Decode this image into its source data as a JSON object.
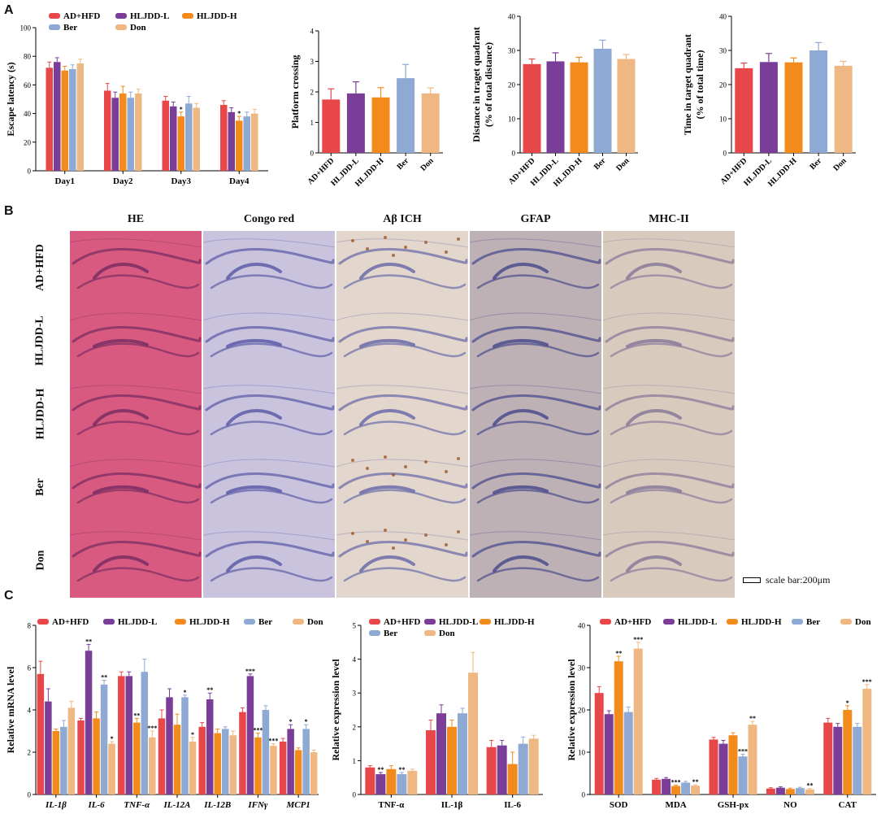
{
  "panels": {
    "a": "A",
    "b": "B",
    "c": "C"
  },
  "colors": {
    "red": "#e8474a",
    "purple": "#7a3d98",
    "orange": "#f38a1c",
    "blue": "#8ea9d3",
    "peach": "#efb882"
  },
  "chart_data": [
    {
      "id": "escape",
      "type": "bar",
      "ylabel": "Escape latency (s)",
      "ylim": [
        0,
        100
      ],
      "yticks": [
        "0",
        "20",
        "40",
        "60",
        "80",
        "100"
      ],
      "categories": [
        "Day1",
        "Day2",
        "Day3",
        "Day4"
      ],
      "italic_categories": false,
      "series": [
        {
          "name": "AD+HFD",
          "color": "#e8474a",
          "values": [
            72,
            56,
            49,
            46
          ],
          "errors": [
            4,
            5,
            3,
            3
          ],
          "stars": [
            "",
            "",
            "",
            ""
          ]
        },
        {
          "name": "HLJDD-L",
          "color": "#7a3d98",
          "values": [
            76,
            51,
            45,
            41
          ],
          "errors": [
            3,
            4,
            3,
            3
          ],
          "stars": [
            "",
            "",
            "",
            ""
          ]
        },
        {
          "name": "HLJDD-H",
          "color": "#f38a1c",
          "values": [
            70,
            54,
            38,
            35
          ],
          "errors": [
            3,
            5,
            3,
            3
          ],
          "stars": [
            "",
            "",
            "*",
            "*"
          ]
        },
        {
          "name": "Ber",
          "color": "#8ea9d3",
          "values": [
            71,
            51,
            47,
            38
          ],
          "errors": [
            3,
            4,
            5,
            3
          ],
          "stars": [
            "",
            "",
            "",
            ""
          ]
        },
        {
          "name": "Don",
          "color": "#efb882",
          "values": [
            75,
            54,
            44,
            40
          ],
          "errors": [
            3,
            3,
            3,
            3
          ],
          "stars": [
            "",
            "",
            "",
            ""
          ]
        }
      ],
      "legend": {
        "names": [
          "AD+HFD",
          "HLJDD-L",
          "HLJDD-H",
          "Ber",
          "Don"
        ],
        "placement": "top"
      }
    },
    {
      "id": "platform",
      "type": "bar",
      "ylabel": "Platform crossing",
      "ylim": [
        0,
        4
      ],
      "yticks": [
        "0",
        "1",
        "2",
        "3",
        "4"
      ],
      "categories": [
        "AD+HFD",
        "HLJDD-L",
        "HLJDD-H",
        "Ber",
        "Don"
      ],
      "series": [
        {
          "name": "groups",
          "values": [
            1.75,
            1.95,
            1.82,
            2.45,
            1.95
          ],
          "errors": [
            0.35,
            0.38,
            0.32,
            0.45,
            0.18
          ],
          "colors": [
            "#e8474a",
            "#7a3d98",
            "#f38a1c",
            "#8ea9d3",
            "#efb882"
          ]
        }
      ]
    },
    {
      "id": "distance",
      "type": "bar",
      "ylabel": [
        "Distance in traget quadrant",
        "(% of total distance)"
      ],
      "ylim": [
        0,
        40
      ],
      "yticks": [
        "0",
        "10",
        "20",
        "30",
        "40"
      ],
      "categories": [
        "AD+HFD",
        "HLJDD-L",
        "HLJDD-H",
        "Ber",
        "Don"
      ],
      "series": [
        {
          "name": "groups",
          "values": [
            26,
            26.8,
            26.5,
            30.5,
            27.5
          ],
          "errors": [
            1.5,
            2.5,
            1.5,
            2.5,
            1.3
          ],
          "colors": [
            "#e8474a",
            "#7a3d98",
            "#f38a1c",
            "#8ea9d3",
            "#efb882"
          ]
        }
      ]
    },
    {
      "id": "time",
      "type": "bar",
      "ylabel": [
        "Time in target quadrant",
        "(% of total time)"
      ],
      "ylim": [
        0,
        40
      ],
      "yticks": [
        "0",
        "10",
        "20",
        "30",
        "40"
      ],
      "categories": [
        "AD+HFD",
        "HLJDD-L",
        "HLJDD-H",
        "Ber",
        "Don"
      ],
      "series": [
        {
          "name": "groups",
          "values": [
            24.8,
            26.6,
            26.5,
            30,
            25.5
          ],
          "errors": [
            1.5,
            2.5,
            1.3,
            2.3,
            1.3
          ],
          "colors": [
            "#e8474a",
            "#7a3d98",
            "#f38a1c",
            "#8ea9d3",
            "#efb882"
          ]
        }
      ]
    },
    {
      "id": "mrna",
      "type": "bar",
      "ylabel": "Relative mRNA level",
      "ylim": [
        0,
        8
      ],
      "yticks": [
        "0",
        "2",
        "4",
        "6",
        "8"
      ],
      "categories": [
        "IL-1β",
        "IL-6",
        "TNF-α",
        "IL-12A",
        "IL-12B",
        "IFNγ",
        "MCP1"
      ],
      "italic_categories": true,
      "series": [
        {
          "name": "AD+HFD",
          "color": "#e8474a",
          "values": [
            5.7,
            3.5,
            5.6,
            3.6,
            3.2,
            3.9,
            2.5
          ],
          "errors": [
            0.6,
            0.1,
            0.2,
            0.4,
            0.2,
            0.2,
            0.15
          ],
          "stars": [
            "",
            "",
            "",
            "",
            "",
            "",
            ""
          ]
        },
        {
          "name": "HLJDD-L",
          "color": "#7a3d98",
          "values": [
            4.4,
            6.8,
            5.6,
            4.6,
            4.5,
            5.6,
            3.1
          ],
          "errors": [
            0.6,
            0.3,
            0.2,
            0.4,
            0.3,
            0.1,
            0.2
          ],
          "stars": [
            "",
            "**",
            "",
            "",
            "**",
            "***",
            "*"
          ]
        },
        {
          "name": "HLJDD-H",
          "color": "#f38a1c",
          "values": [
            3.0,
            3.6,
            3.4,
            3.3,
            2.9,
            2.7,
            2.1
          ],
          "errors": [
            0.1,
            0.3,
            0.2,
            0.5,
            0.2,
            0.2,
            0.1
          ],
          "stars": [
            "",
            "",
            "**",
            "",
            "",
            "***",
            ""
          ]
        },
        {
          "name": "Ber",
          "color": "#8ea9d3",
          "values": [
            3.2,
            5.2,
            5.8,
            4.6,
            3.1,
            4.0,
            3.1
          ],
          "errors": [
            0.3,
            0.2,
            0.6,
            0.1,
            0.1,
            0.2,
            0.2
          ],
          "stars": [
            "",
            "**",
            "",
            "*",
            "",
            "",
            "*"
          ]
        },
        {
          "name": "Don",
          "color": "#efb882",
          "values": [
            4.1,
            2.4,
            2.7,
            2.5,
            2.8,
            2.3,
            2.0
          ],
          "errors": [
            0.3,
            0.1,
            0.3,
            0.2,
            0.2,
            0.1,
            0.1
          ],
          "stars": [
            "",
            "*",
            "***",
            "*",
            "",
            "***",
            ""
          ]
        }
      ],
      "legend": {
        "names": [
          "AD+HFD",
          "HLJDD-L",
          "HLJDD-H",
          "Ber",
          "Don"
        ],
        "placement": "top"
      }
    },
    {
      "id": "expr1",
      "type": "bar",
      "ylabel": "Relative expression level",
      "ylim": [
        0,
        5
      ],
      "yticks": [
        "0",
        "1",
        "2",
        "3",
        "4",
        "5"
      ],
      "categories": [
        "TNF-α",
        "IL-1β",
        "IL-6"
      ],
      "italic_categories": false,
      "series": [
        {
          "name": "AD+HFD",
          "color": "#e8474a",
          "values": [
            0.8,
            1.9,
            1.4
          ],
          "errors": [
            0.05,
            0.3,
            0.2
          ],
          "stars": [
            "",
            "",
            ""
          ]
        },
        {
          "name": "HLJDD-L",
          "color": "#7a3d98",
          "values": [
            0.6,
            2.4,
            1.45
          ],
          "errors": [
            0.05,
            0.25,
            0.15
          ],
          "stars": [
            "**",
            "",
            ""
          ]
        },
        {
          "name": "HLJDD-H",
          "color": "#f38a1c",
          "values": [
            0.75,
            2.0,
            0.9
          ],
          "errors": [
            0.1,
            0.2,
            0.35
          ],
          "stars": [
            "",
            "",
            ""
          ]
        },
        {
          "name": "Ber",
          "color": "#8ea9d3",
          "values": [
            0.6,
            2.4,
            1.5
          ],
          "errors": [
            0.05,
            0.15,
            0.2
          ],
          "stars": [
            "**",
            "",
            ""
          ]
        },
        {
          "name": "Don",
          "color": "#efb882",
          "values": [
            0.7,
            3.6,
            1.65
          ],
          "errors": [
            0.05,
            0.6,
            0.1
          ],
          "stars": [
            "",
            "",
            ""
          ]
        }
      ],
      "legend": {
        "names": [
          "AD+HFD",
          "HLJDD-L",
          "HLJDD-H",
          "Ber",
          "Don"
        ],
        "placement": "top"
      }
    },
    {
      "id": "expr2",
      "type": "bar",
      "ylabel": "Relative expression level",
      "ylim": [
        0,
        40
      ],
      "yticks": [
        "0",
        "10",
        "20",
        "30",
        "40"
      ],
      "categories": [
        "SOD",
        "MDA",
        "GSH-px",
        "NO",
        "CAT"
      ],
      "italic_categories": false,
      "series": [
        {
          "name": "AD+HFD",
          "color": "#e8474a",
          "values": [
            24,
            3.5,
            13,
            1.4,
            17
          ],
          "errors": [
            1.5,
            0.3,
            0.5,
            0.2,
            1.0
          ],
          "stars": [
            "",
            "",
            "",
            "",
            ""
          ]
        },
        {
          "name": "HLJDD-L",
          "color": "#7a3d98",
          "values": [
            19,
            3.7,
            12,
            1.6,
            16
          ],
          "errors": [
            0.8,
            0.3,
            0.8,
            0.2,
            0.8
          ],
          "stars": [
            "",
            "",
            "",
            "",
            ""
          ]
        },
        {
          "name": "HLJDD-H",
          "color": "#f38a1c",
          "values": [
            31.5,
            2.0,
            14,
            1.3,
            20
          ],
          "errors": [
            1.2,
            0.2,
            0.6,
            0.2,
            1.0
          ],
          "stars": [
            "**",
            "***",
            "",
            "",
            "*"
          ]
        },
        {
          "name": "Ber",
          "color": "#8ea9d3",
          "values": [
            19.5,
            2.8,
            9,
            1.5,
            16
          ],
          "errors": [
            1.2,
            0.3,
            0.5,
            0.2,
            0.8
          ],
          "stars": [
            "",
            "",
            "***",
            "",
            ""
          ]
        },
        {
          "name": "Don",
          "color": "#efb882",
          "values": [
            34.5,
            2.1,
            16.5,
            1.2,
            25
          ],
          "errors": [
            1.5,
            0.2,
            0.8,
            0.2,
            1.0
          ],
          "stars": [
            "***",
            "**",
            "**",
            "**",
            "***"
          ]
        }
      ],
      "legend": {
        "names": [
          "AD+HFD",
          "HLJDD-L",
          "HLJDD-H",
          "Ber",
          "Don"
        ],
        "placement": "top"
      }
    }
  ],
  "histology": {
    "columns": [
      "HE",
      "Congo red",
      "Aβ ICH",
      "GFAP",
      "MHC-II"
    ],
    "rows": [
      "AD+HFD",
      "HLJDD-L",
      "HLJDD-H",
      "Ber",
      "Don"
    ],
    "scale_bar": "scale bar:200μm",
    "tints": [
      "#d95a80",
      "#c9c3de",
      "#e2d6cd",
      "#bdb1b6",
      "#d8cbbe"
    ],
    "layer_colors": [
      "#7a2e63",
      "#5d5da8",
      "#6c6ca8",
      "#4c4c8c",
      "#8a7a9a"
    ]
  }
}
